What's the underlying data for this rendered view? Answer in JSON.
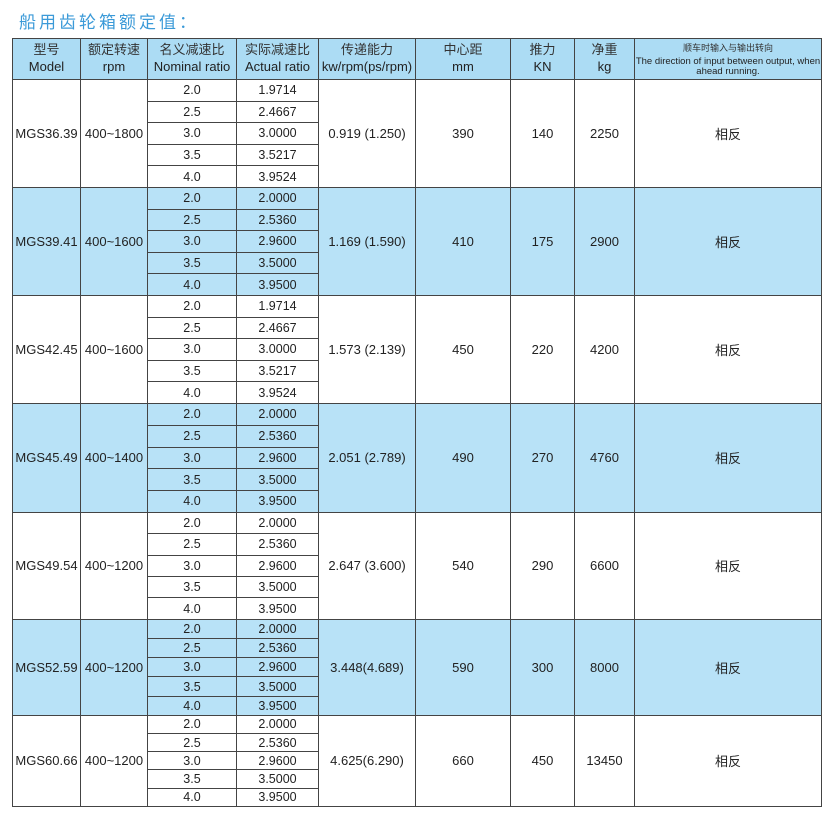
{
  "title": "船用齿轮箱额定值：",
  "colors": {
    "header_bg": "#acdcf4",
    "highlight_bg": "#b8e2f7",
    "title": "#3b9ad8"
  },
  "headers": [
    {
      "zh": "型号",
      "en": "Model"
    },
    {
      "zh": "额定转速",
      "en": "rpm"
    },
    {
      "zh": "名义减速比",
      "en": "Nominal ratio"
    },
    {
      "zh": "实际减速比",
      "en": "Actual ratio"
    },
    {
      "zh": "传递能力",
      "en": "kw/rpm(ps/rpm)"
    },
    {
      "zh": "中心距",
      "en": "mm"
    },
    {
      "zh": "推力",
      "en": "KN"
    },
    {
      "zh": "净重",
      "en": "kg"
    },
    {
      "zh": "顺车时输入与输出转向",
      "en": "The direction of input between output, when ahead running."
    }
  ],
  "rows": [
    {
      "model": "MGS36.39",
      "rpm": "400~1800",
      "nominal": [
        "2.0",
        "2.5",
        "3.0",
        "3.5",
        "4.0"
      ],
      "actual": [
        "1.9714",
        "2.4667",
        "3.0000",
        "3.5217",
        "3.9524"
      ],
      "capacity": "0.919 (1.250)",
      "center": "390",
      "thrust": "140",
      "weight": "2250",
      "direction": "相反",
      "highlight": false
    },
    {
      "model": "MGS39.41",
      "rpm": "400~1600",
      "nominal": [
        "2.0",
        "2.5",
        "3.0",
        "3.5",
        "4.0"
      ],
      "actual": [
        "2.0000",
        "2.5360",
        "2.9600",
        "3.5000",
        "3.9500"
      ],
      "capacity": "1.169 (1.590)",
      "center": "410",
      "thrust": "175",
      "weight": "2900",
      "direction": "相反",
      "highlight": true
    },
    {
      "model": "MGS42.45",
      "rpm": "400~1600",
      "nominal": [
        "2.0",
        "2.5",
        "3.0",
        "3.5",
        "4.0"
      ],
      "actual": [
        "1.9714",
        "2.4667",
        "3.0000",
        "3.5217",
        "3.9524"
      ],
      "capacity": "1.573 (2.139)",
      "center": "450",
      "thrust": "220",
      "weight": "4200",
      "direction": "相反",
      "highlight": false
    },
    {
      "model": "MGS45.49",
      "rpm": "400~1400",
      "nominal": [
        "2.0",
        "2.5",
        "3.0",
        "3.5",
        "4.0"
      ],
      "actual": [
        "2.0000",
        "2.5360",
        "2.9600",
        "3.5000",
        "3.9500"
      ],
      "capacity": "2.051 (2.789)",
      "center": "490",
      "thrust": "270",
      "weight": "4760",
      "direction": "相反",
      "highlight": true
    },
    {
      "model": "MGS49.54",
      "rpm": "400~1200",
      "nominal": [
        "2.0",
        "2.5",
        "3.0",
        "3.5",
        "4.0"
      ],
      "actual": [
        "2.0000",
        "2.5360",
        "2.9600",
        "3.5000",
        "3.9500"
      ],
      "capacity": "2.647 (3.600)",
      "center": "540",
      "thrust": "290",
      "weight": "6600",
      "direction": "相反",
      "highlight": false
    },
    {
      "model": "MGS52.59",
      "rpm": "400~1200",
      "nominal": [
        "2.0",
        "2.5",
        "3.0",
        "3.5",
        "4.0"
      ],
      "actual": [
        "2.0000",
        "2.5360",
        "2.9600",
        "3.5000",
        "3.9500"
      ],
      "capacity": "3.448(4.689)",
      "center": "590",
      "thrust": "300",
      "weight": "8000",
      "direction": "相反",
      "highlight": true
    },
    {
      "model": "MGS60.66",
      "rpm": "400~1200",
      "nominal": [
        "2.0",
        "2.5",
        "3.0",
        "3.5",
        "4.0"
      ],
      "actual": [
        "2.0000",
        "2.5360",
        "2.9600",
        "3.5000",
        "3.9500"
      ],
      "capacity": "4.625(6.290)",
      "center": "660",
      "thrust": "450",
      "weight": "13450",
      "direction": "相反",
      "highlight": false
    }
  ]
}
